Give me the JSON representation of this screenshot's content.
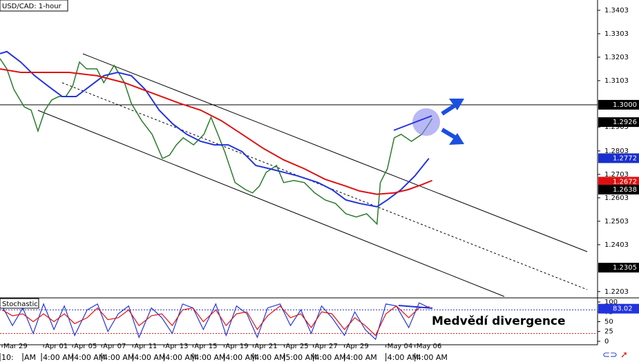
{
  "chart_data": {
    "type": "line",
    "title": "USD/CAD: 1-hour",
    "annotation": "Medvědí divergence",
    "xlim": [
      0,
      288
    ],
    "ylim": [
      1.2182,
      1.3447
    ],
    "yticks": [
      1.3403,
      1.3303,
      1.3203,
      1.3103,
      1.2905,
      1.2803,
      1.2703,
      1.2603,
      1.2503,
      1.2403,
      1.2203
    ],
    "xticks": [
      {
        "value": 1,
        "label": "Mar 29"
      },
      {
        "value": 21,
        "label": "Apr 01"
      },
      {
        "value": 35,
        "label": "Apr 05"
      },
      {
        "value": 49,
        "label": "Apr 07"
      },
      {
        "value": 64,
        "label": "Apr 11"
      },
      {
        "value": 79,
        "label": "Apr 13"
      },
      {
        "value": 93,
        "label": "Apr 15"
      },
      {
        "value": 108,
        "label": "Apr 19"
      },
      {
        "value": 122,
        "label": "Apr 21"
      },
      {
        "value": 137,
        "label": "Apr 25"
      },
      {
        "value": 151,
        "label": "Apr 27"
      },
      {
        "value": 166,
        "label": "Apr 29"
      },
      {
        "value": 186,
        "label": "May 04"
      },
      {
        "value": 200,
        "label": "May 06"
      }
    ],
    "time_ticks": [
      {
        "value": 0,
        "label": "10:"
      },
      {
        "value": 11,
        "label": "AM"
      },
      {
        "value": 20,
        "label": "4:00 AM"
      },
      {
        "value": 35,
        "label": "4:00 AM"
      },
      {
        "value": 49,
        "label": "4:00 AM"
      },
      {
        "value": 64,
        "label": "4:00 AM"
      },
      {
        "value": 79,
        "label": "4:00 AM"
      },
      {
        "value": 93,
        "label": "4:00 AM"
      },
      {
        "value": 108,
        "label": "4:00 AM"
      },
      {
        "value": 122,
        "label": "4:00 AM"
      },
      {
        "value": 137,
        "label": "5:00 AM"
      },
      {
        "value": 151,
        "label": "4:00 AM"
      },
      {
        "value": 166,
        "label": "4:00 AM"
      },
      {
        "value": 186,
        "label": "4:00 AM"
      },
      {
        "value": 200,
        "label": "4:00 AM"
      }
    ],
    "price_markers": [
      {
        "value": 1.3,
        "label": "1.3000",
        "color": "#000000"
      },
      {
        "value": 1.2926,
        "label": "1.2926",
        "color": "#000000"
      },
      {
        "value": 1.2772,
        "label": "1.2772",
        "color": "#1a2ecc"
      },
      {
        "value": 1.2672,
        "label": "1.2672",
        "color": "#dd1111"
      },
      {
        "value": 1.2638,
        "label": "1.2638",
        "color": "#000000"
      },
      {
        "value": 1.2305,
        "label": "1.2305",
        "color": "#000000"
      }
    ],
    "series": [
      {
        "color": "#2a7a2a",
        "x": [
          0,
          3.3,
          6.7,
          11.7,
          15,
          18.3,
          21.7,
          25,
          28.3,
          31.7,
          35,
          38.3,
          41.7,
          46.7,
          50,
          55,
          60,
          63.3,
          68.3,
          73.3,
          78.3,
          81.7,
          85,
          88.3,
          93.3,
          98.3,
          101.7,
          105,
          108.3,
          113.3,
          118.3,
          121.7,
          125,
          128.3,
          133.3,
          136.7,
          141.7,
          146.7,
          151.7,
          156.7,
          161.7,
          166.7,
          171.7,
          176.7,
          181.7,
          183.3,
          186.7,
          190,
          193.3,
          198.3,
          203.3,
          206.7,
          208.3
        ],
        "values": [
          1.3197,
          1.3153,
          1.3065,
          1.2991,
          1.2977,
          1.2888,
          1.2977,
          1.3021,
          1.3035,
          1.3035,
          1.3079,
          1.3182,
          1.3153,
          1.3153,
          1.3094,
          1.3168,
          1.3094,
          1.3006,
          1.2932,
          1.2874,
          1.2771,
          1.2785,
          1.2829,
          1.2859,
          1.2829,
          1.2874,
          1.2947,
          1.2874,
          1.28,
          1.2668,
          1.2638,
          1.2624,
          1.2653,
          1.2712,
          1.2741,
          1.2668,
          1.2677,
          1.2668,
          1.2624,
          1.2594,
          1.2579,
          1.2535,
          1.2521,
          1.2535,
          1.2491,
          1.2668,
          1.2727,
          1.2859,
          1.2874,
          1.2844,
          1.2874,
          1.2918,
          1.2941
        ]
      },
      {
        "color": "#2233dd",
        "x": [
          0,
          3.3,
          10,
          16.7,
          23.3,
          30,
          36.7,
          43.3,
          50,
          56.7,
          63.3,
          70,
          76.7,
          83.3,
          90,
          96.7,
          103.3,
          110,
          116.7,
          123.3,
          130,
          136.7,
          143.3,
          153.3,
          160,
          166.7,
          173.3,
          181.7,
          186.7,
          193.3,
          200,
          206.7
        ],
        "values": [
          1.3218,
          1.3227,
          1.3182,
          1.3124,
          1.3079,
          1.3035,
          1.3035,
          1.3079,
          1.3124,
          1.3138,
          1.3124,
          1.3065,
          1.2977,
          1.2918,
          1.2874,
          1.2844,
          1.2829,
          1.2829,
          1.28,
          1.2741,
          1.2727,
          1.2712,
          1.2697,
          1.2668,
          1.2638,
          1.2594,
          1.2579,
          1.2565,
          1.2594,
          1.2638,
          1.2697,
          1.2771
        ]
      },
      {
        "color": "#dd1111",
        "x": [
          0,
          10,
          20,
          33.3,
          46.7,
          60,
          73.3,
          86.7,
          96.7,
          106.7,
          116.7,
          126.7,
          136.7,
          146.7,
          156.7,
          166.7,
          173.3,
          181.7,
          190,
          196.7,
          203.3,
          208.3
        ],
        "values": [
          1.3153,
          1.3138,
          1.3138,
          1.3138,
          1.3124,
          1.3094,
          1.305,
          1.3006,
          1.2977,
          1.2932,
          1.2874,
          1.2815,
          1.2765,
          1.2727,
          1.2682,
          1.2653,
          1.2632,
          1.2618,
          1.2624,
          1.2638,
          1.2659,
          1.2677
        ]
      }
    ],
    "stochastic": {
      "title": "Stochastic",
      "ylim": [
        -8.8,
        108.8
      ],
      "yticks": [
        0,
        25,
        50,
        75,
        100
      ],
      "levels": [
        {
          "value": 80,
          "color": "#2233dd"
        },
        {
          "value": 20,
          "color": "#dd1111"
        }
      ],
      "marker": {
        "value": 83.02,
        "label": "83.02",
        "color": "#2233dd"
      },
      "x": [
        1,
        6,
        11,
        16,
        21,
        26,
        31,
        36,
        42,
        47,
        52,
        57,
        62,
        67,
        73,
        78,
        83,
        88,
        93,
        98,
        104,
        109,
        114,
        119,
        124,
        129,
        135,
        140,
        145,
        150,
        155,
        160,
        166,
        171,
        176,
        181,
        186,
        191,
        197,
        202,
        207
      ],
      "series": [
        {
          "color": "#2233dd",
          "values": [
            90,
            40,
            85,
            20,
            95,
            30,
            90,
            15,
            80,
            95,
            25,
            70,
            90,
            10,
            85,
            60,
            20,
            95,
            85,
            30,
            95,
            15,
            90,
            70,
            10,
            85,
            95,
            40,
            80,
            20,
            90,
            60,
            15,
            75,
            30,
            5,
            95,
            90,
            35,
            98,
            85
          ]
        },
        {
          "color": "#dd1111",
          "values": [
            80,
            65,
            70,
            50,
            70,
            50,
            70,
            45,
            60,
            85,
            55,
            60,
            80,
            40,
            65,
            70,
            40,
            80,
            85,
            50,
            80,
            40,
            70,
            75,
            30,
            65,
            90,
            60,
            70,
            35,
            75,
            70,
            30,
            60,
            40,
            15,
            70,
            90,
            60,
            85,
            88
          ]
        }
      ]
    }
  }
}
